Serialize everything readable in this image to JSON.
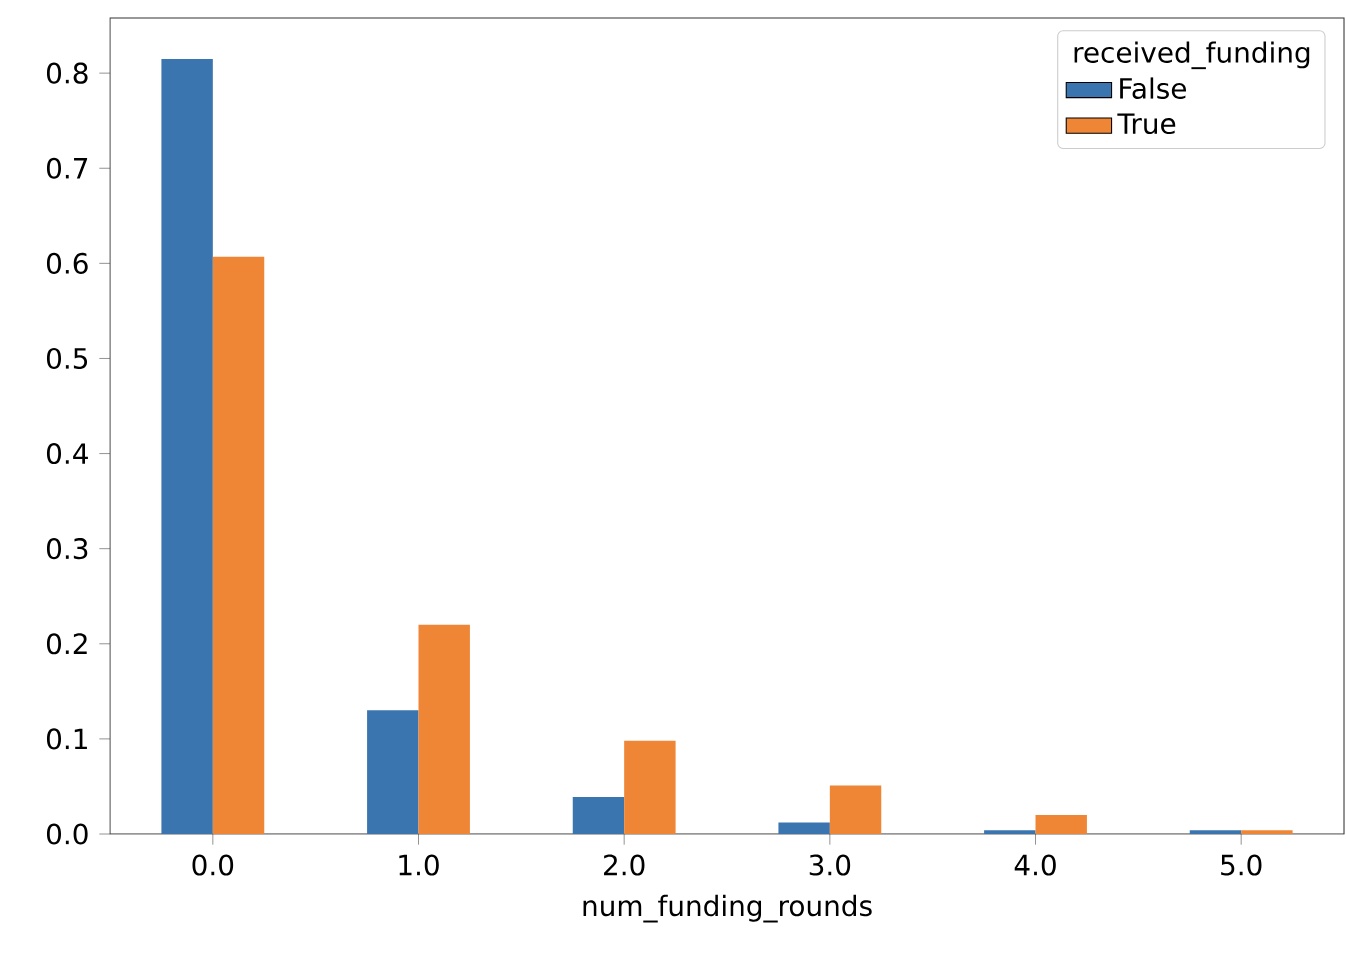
{
  "chart_data": {
    "type": "bar",
    "xlabel": "num_funding_rounds",
    "legend_title": "received_funding",
    "legend": "top right",
    "categories": [
      "0.0",
      "1.0",
      "2.0",
      "3.0",
      "4.0",
      "5.0"
    ],
    "series": [
      {
        "name": "False",
        "color": "#3a75af",
        "values": [
          0.815,
          0.13,
          0.039,
          0.012,
          0.004,
          0.004
        ]
      },
      {
        "name": "True",
        "color": "#ef8636",
        "values": [
          0.607,
          0.22,
          0.098,
          0.051,
          0.02,
          0.004
        ]
      }
    ],
    "ylim": [
      0,
      0.858
    ],
    "yticks": [
      {
        "value": 0,
        "label": "0.0"
      },
      0.1,
      0.2,
      0.3,
      0.4,
      0.5,
      0.6,
      0.7,
      0.8
    ]
  }
}
